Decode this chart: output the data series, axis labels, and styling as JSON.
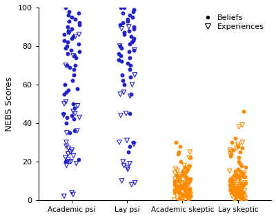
{
  "categories": [
    "Academic psi",
    "Lay psi",
    "Academic skeptic",
    "Lay skeptic"
  ],
  "colors": {
    "psi": "#2222CC",
    "skeptic": "#FF8C00"
  },
  "beliefs": {
    "Academic psi": [
      100,
      98,
      97,
      96,
      95,
      94,
      93,
      92,
      91,
      90,
      89,
      88,
      87,
      86,
      85,
      84,
      83,
      82,
      81,
      80,
      79,
      78,
      77,
      76,
      75,
      74,
      70,
      70,
      69,
      68,
      65,
      62,
      60,
      58,
      57,
      56,
      55,
      50,
      48,
      45,
      44,
      43,
      42,
      40,
      36,
      35,
      21,
      20
    ],
    "Lay psi": [
      100,
      100,
      99,
      98,
      97,
      96,
      95,
      94,
      93,
      92,
      91,
      90,
      89,
      88,
      87,
      86,
      85,
      84,
      83,
      82,
      81,
      80,
      79,
      78,
      77,
      76,
      75,
      74,
      73,
      72,
      71,
      70,
      68,
      65,
      64,
      62,
      60,
      55,
      45,
      30,
      28,
      25
    ],
    "Academic skeptic": [
      30,
      28,
      25,
      24,
      22,
      20,
      18,
      17,
      16,
      15,
      14,
      13,
      12,
      11,
      10,
      9,
      8,
      7,
      6,
      5,
      5,
      4,
      4,
      3,
      3,
      2,
      2,
      1,
      1,
      0,
      0,
      0,
      5,
      8,
      10,
      12,
      6,
      7,
      9,
      11,
      13,
      3,
      4,
      15,
      6,
      8,
      7,
      5,
      4,
      3,
      2,
      1,
      0,
      2,
      3,
      5,
      7,
      9,
      11,
      4,
      6,
      8,
      3,
      5,
      7,
      2,
      4,
      6,
      8,
      10
    ],
    "Lay skeptic": [
      46,
      32,
      30,
      28,
      27,
      26,
      25,
      24,
      23,
      22,
      20,
      19,
      18,
      17,
      16,
      15,
      14,
      13,
      12,
      11,
      10,
      9,
      8,
      7,
      6,
      5,
      4,
      3,
      2,
      1,
      0,
      0,
      0,
      1,
      2,
      3,
      4,
      5,
      6,
      7,
      8,
      9,
      10,
      11,
      12,
      3,
      4,
      5,
      6,
      7,
      8,
      2,
      3,
      4,
      5,
      6,
      1,
      2,
      3,
      4,
      5,
      7,
      8,
      9,
      10,
      11,
      12,
      13,
      14,
      15
    ]
  },
  "experiences": {
    "Academic psi": [
      87,
      86,
      85,
      75,
      70,
      51,
      50,
      49,
      46,
      45,
      44,
      43,
      36,
      35,
      30,
      28,
      27,
      26,
      25,
      24,
      23,
      22,
      21,
      20,
      20,
      19,
      18,
      4,
      3,
      2
    ],
    "Lay psi": [
      90,
      89,
      80,
      78,
      65,
      60,
      56,
      55,
      54,
      45,
      44,
      31,
      30,
      29,
      20,
      19,
      18,
      17,
      16,
      10,
      9,
      8
    ],
    "Academic skeptic": [
      25,
      22,
      18,
      17,
      16,
      15,
      14,
      13,
      12,
      11,
      10,
      9,
      8,
      7,
      6,
      5,
      4,
      3,
      2,
      1,
      0,
      1,
      2,
      3,
      4,
      5,
      6,
      7,
      8,
      9,
      10,
      11,
      12,
      13,
      14,
      15,
      5,
      7,
      9,
      11
    ],
    "Lay skeptic": [
      39,
      38,
      30,
      29,
      28,
      27,
      26,
      25,
      24,
      12,
      11,
      10,
      9,
      8,
      7,
      6,
      5,
      4,
      3,
      2,
      1,
      0,
      1,
      2,
      3,
      4,
      5,
      6,
      7,
      8,
      9,
      10,
      11,
      12,
      13,
      14,
      15,
      5,
      7,
      9
    ]
  },
  "ylabel": "NEBS Scores",
  "ylim": [
    0,
    100
  ],
  "legend_labels": [
    "Beliefs",
    "Experiences"
  ],
  "jitter_seed": 42,
  "jitter_amount": 0.15
}
